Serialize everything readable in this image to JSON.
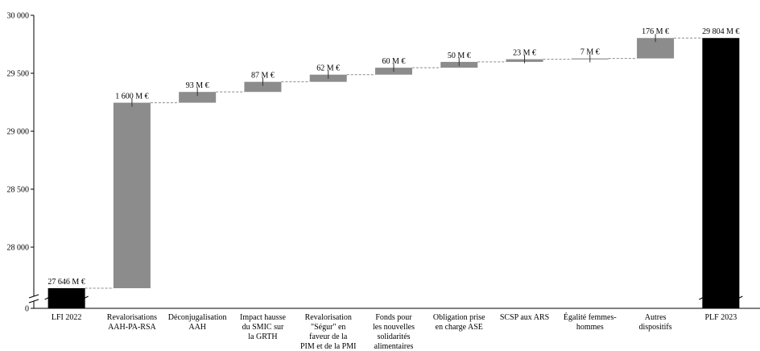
{
  "chart_data": {
    "type": "bar",
    "subtype": "waterfall",
    "title": "",
    "xlabel": "",
    "ylabel": "",
    "ylim": [
      26500,
      30000
    ],
    "yticks": [
      {
        "value": 0,
        "label": "0"
      },
      {
        "value": 28000,
        "label": "28 000"
      },
      {
        "value": 28500,
        "label": "28 500"
      },
      {
        "value": 29000,
        "label": "29 000"
      },
      {
        "value": 29500,
        "label": "29 500"
      },
      {
        "value": 30000,
        "label": "30 000"
      }
    ],
    "axis_break": true,
    "grid": false,
    "legend": "none",
    "colors": {
      "total": "#000000",
      "increment": "#8c8c8c",
      "error_bar": "#333333",
      "connector": "#8c8c8c"
    },
    "categories": [
      {
        "lines": [
          "LFI 2022"
        ],
        "kind": "total",
        "value": 27646,
        "label": "27 646 M €"
      },
      {
        "lines": [
          "Revalorisations",
          "AAH-PA-RSA"
        ],
        "kind": "increment",
        "value": 1600,
        "label": "1 600 M €"
      },
      {
        "lines": [
          "Déconjugalisation",
          "AAH"
        ],
        "kind": "increment",
        "value": 93,
        "label": "93 M €"
      },
      {
        "lines": [
          "Impact hausse",
          "du SMIC sur",
          "la GRTH"
        ],
        "kind": "increment",
        "value": 87,
        "label": "87 M €"
      },
      {
        "lines": [
          "Revalorisation",
          "\"Ségur\" en",
          "faveur  de la",
          "PIM et de la PMI"
        ],
        "kind": "increment",
        "value": 62,
        "label": "62 M €"
      },
      {
        "lines": [
          "Fonds pour",
          "les nouvelles",
          "solidarités",
          "alimentaires"
        ],
        "kind": "increment",
        "value": 60,
        "label": "60 M €"
      },
      {
        "lines": [
          "Obligation prise",
          "en charge ASE"
        ],
        "kind": "increment",
        "value": 50,
        "label": "50 M €"
      },
      {
        "lines": [
          "SCSP aux ARS"
        ],
        "kind": "increment",
        "value": 23,
        "label": "23 M €"
      },
      {
        "lines": [
          "Égalité femmes-",
          "hommes"
        ],
        "kind": "increment",
        "value": 7,
        "label": "7 M €"
      },
      {
        "lines": [
          "Autres",
          "dispositifs"
        ],
        "kind": "increment",
        "value": 176,
        "label": "176 M €"
      },
      {
        "lines": [
          "PLF 2023"
        ],
        "kind": "total",
        "value": 29804,
        "label": "29 804 M €"
      }
    ]
  }
}
